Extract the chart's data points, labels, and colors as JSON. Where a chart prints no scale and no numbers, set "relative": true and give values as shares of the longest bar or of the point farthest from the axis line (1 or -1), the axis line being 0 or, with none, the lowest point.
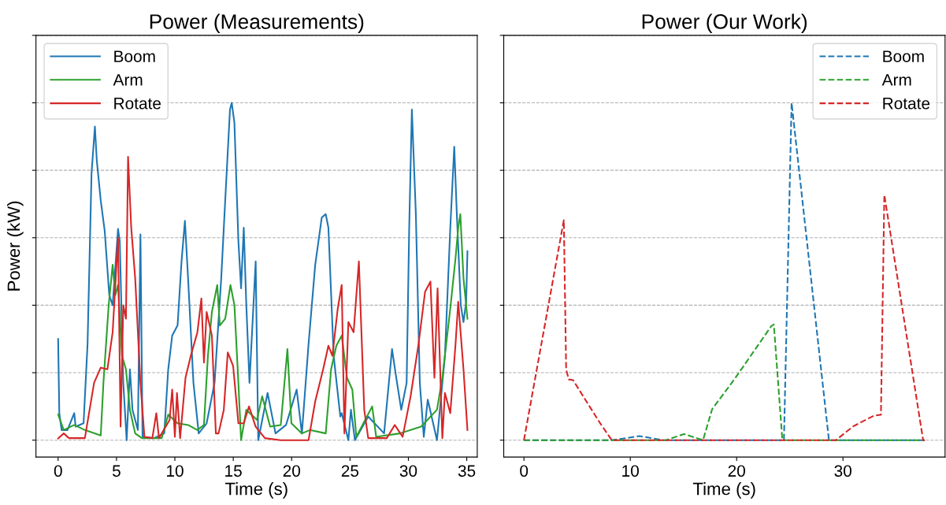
{
  "chart_data": [
    {
      "type": "line",
      "title": "Power (Measurements)",
      "xlabel": "Time (s)",
      "ylabel": "Power (kW)",
      "relative": true,
      "xlim": [
        -1.9,
        35.9
      ],
      "xticks": [
        0,
        5,
        10,
        15,
        20,
        25,
        30,
        35
      ],
      "grid": "y",
      "legend": "top left",
      "tick_labels": "x",
      "line_style": "solid",
      "series": [
        {
          "name": "Boom",
          "color": "#1f77b4",
          "x": [
            0,
            0.1,
            0.3,
            0.8,
            1.38,
            1.5,
            2.18,
            2.52,
            2.86,
            3.15,
            3.31,
            3.65,
            3.99,
            4.38,
            4.67,
            5.13,
            5.28,
            5.58,
            5.87,
            6.15,
            6.37,
            6.83,
            7.05,
            7.23,
            8.19,
            9.09,
            9.43,
            9.77,
            10.23,
            10.57,
            10.86,
            11.13,
            11.59,
            12.04,
            12.72,
            13.4,
            13.97,
            14.31,
            14.72,
            14.87,
            15.1,
            15.44,
            15.67,
            15.9,
            16.12,
            16.39,
            16.92,
            17.14,
            17.94,
            18.62,
            19.52,
            20.43,
            20.88,
            21.45,
            22.02,
            22.58,
            22.92,
            23.15,
            23.6,
            24.17,
            24.29,
            24.86,
            25.08,
            25.42,
            26.56,
            27.92,
            28.6,
            28.94,
            29.39,
            29.85,
            30.07,
            30.3,
            30.64,
            30.98,
            31.32,
            31.66,
            32.45,
            33.13,
            33.59,
            33.93,
            34.15,
            34.49,
            34.72,
            34.95,
            35.06
          ],
          "values": [
            0.3,
            0.08,
            0.03,
            0.03,
            0.08,
            0.04,
            0.05,
            0.285,
            0.79,
            0.93,
            0.83,
            0.71,
            0.62,
            0.43,
            0.4,
            0.626,
            0.59,
            0.17,
            0,
            0.21,
            0.09,
            0.03,
            0.61,
            0.01,
            0.006,
            0.02,
            0.21,
            0.31,
            0.34,
            0.53,
            0.65,
            0.48,
            0.17,
            0.02,
            0.05,
            0.17,
            0.48,
            0.71,
            0.98,
            1.0,
            0.94,
            0.59,
            0.45,
            0.63,
            0.4,
            0.17,
            0.53,
            0,
            0.14,
            0.02,
            0.045,
            0.15,
            0.02,
            0.285,
            0.52,
            0.66,
            0.67,
            0.63,
            0.25,
            0.07,
            0.08,
            0,
            0.09,
            0,
            0.07,
            0.02,
            0.27,
            0.19,
            0.09,
            0.17,
            0.63,
            0.98,
            0.67,
            0.17,
            0.01,
            0.12,
            0,
            0.25,
            0.63,
            0.87,
            0.67,
            0.4,
            0.35,
            0.41,
            0.56
          ]
        },
        {
          "name": "Arm",
          "color": "#2ca02c",
          "x": [
            0,
            0.48,
            1.38,
            2.29,
            3.65,
            3.88,
            4.33,
            4.67,
            4.9,
            5.13,
            5.47,
            5.81,
            6.15,
            6.6,
            7.17,
            8.87,
            9.43,
            10.23,
            11.13,
            11.93,
            12.49,
            12.83,
            13.17,
            13.63,
            13.85,
            14.31,
            14.76,
            15.1,
            15.44,
            15.67,
            16.12,
            17.03,
            17.48,
            18.16,
            19.07,
            19.64,
            19.98,
            20.88,
            21.56,
            22.92,
            23.38,
            23.83,
            24.29,
            24.74,
            25.2,
            25.54,
            26.9,
            27.24,
            29.28,
            31.09,
            32.45,
            32.91,
            33.59,
            34.04,
            34.27,
            34.45,
            34.72,
            35.06
          ],
          "values": [
            0.076,
            0.03,
            0.045,
            0.03,
            0.014,
            0.17,
            0.4,
            0.52,
            0.43,
            0.46,
            0.25,
            0.21,
            0.09,
            0.02,
            0.006,
            0.006,
            0.076,
            0.05,
            0.045,
            0.03,
            0.045,
            0.25,
            0.38,
            0.46,
            0.34,
            0.36,
            0.46,
            0.4,
            0.17,
            0,
            0.09,
            0.06,
            0.13,
            0.04,
            0.045,
            0.27,
            0.05,
            0.02,
            0.03,
            0.02,
            0.21,
            0.28,
            0.31,
            0.185,
            0.15,
            0.01,
            0.1,
            0.01,
            0.02,
            0.04,
            0.09,
            0.185,
            0.39,
            0.54,
            0.63,
            0.67,
            0.48,
            0.36
          ]
        },
        {
          "name": "Rotate",
          "color": "#d62728",
          "x": [
            0,
            0.48,
            0.93,
            2.29,
            3.08,
            3.65,
            4.22,
            4.67,
            5.13,
            5.35,
            5.58,
            5.81,
            5.99,
            6.26,
            6.6,
            7.05,
            7.39,
            8.07,
            8.41,
            8.64,
            9.55,
            9.77,
            10.0,
            10.18,
            10.45,
            10.91,
            11.36,
            11.93,
            12.27,
            12.49,
            12.72,
            13.17,
            13.51,
            13.74,
            14.19,
            14.53,
            14.99,
            15.44,
            15.9,
            16.35,
            16.92,
            17.71,
            19.07,
            21.45,
            22.02,
            22.7,
            23.15,
            23.49,
            23.95,
            24.29,
            24.52,
            24.86,
            25.31,
            25.76,
            26.22,
            26.56,
            28.15,
            28.83,
            29.51,
            30.19,
            30.87,
            31.43,
            31.89,
            32.23,
            32.5,
            32.91,
            33.13,
            33.59,
            34.04,
            34.27,
            34.72,
            35.06
          ],
          "values": [
            0.005,
            0.02,
            0.006,
            0.006,
            0.17,
            0.215,
            0.21,
            0.32,
            0.6,
            0.04,
            0.4,
            0.36,
            0.84,
            0.63,
            0.48,
            0.17,
            0.01,
            0.006,
            0.08,
            0.006,
            0.06,
            0.15,
            0.01,
            0.14,
            0.006,
            0.185,
            0.25,
            0.32,
            0.42,
            0.23,
            0.38,
            0.31,
            0.02,
            0.02,
            0.09,
            0.26,
            0.22,
            0.05,
            0.05,
            0.1,
            0.04,
            0.006,
            0,
            0,
            0.115,
            0.21,
            0.28,
            0.25,
            0.39,
            0.46,
            0.02,
            0.35,
            0.32,
            0.53,
            0.09,
            0.006,
            0.006,
            0.045,
            0.01,
            0.13,
            0.285,
            0.44,
            0.47,
            0.185,
            0.45,
            0.006,
            0.14,
            0.08,
            0.285,
            0.41,
            0.21,
            0.03
          ]
        }
      ]
    },
    {
      "type": "line",
      "title": "Power (Our Work)",
      "xlabel": "Time (s)",
      "relative": true,
      "xlim": [
        -1.9,
        39.6
      ],
      "xticks": [
        0,
        10,
        20,
        30
      ],
      "grid": "y",
      "legend": "top right",
      "tick_labels": "x",
      "line_style": "dashed",
      "series": [
        {
          "name": "Boom",
          "color": "#1f77b4",
          "x": [
            0,
            8.26,
            10.88,
            13.1,
            24.45,
            25.17,
            28.68,
            37.7
          ],
          "values": [
            0,
            0,
            0.012,
            0,
            0,
            1.0,
            0,
            0
          ]
        },
        {
          "name": "Arm",
          "color": "#2ca02c",
          "x": [
            0,
            13.36,
            15.05,
            16.84,
            17.7,
            19.78,
            23.26,
            23.5,
            24.3,
            37.7
          ],
          "values": [
            0,
            0,
            0.018,
            0,
            0.092,
            0.18,
            0.338,
            0.343,
            0,
            0
          ]
        },
        {
          "name": "Rotate",
          "color": "#d62728",
          "x": [
            0,
            3.75,
            3.97,
            4.22,
            4.62,
            5.91,
            7.15,
            8.26,
            29.34,
            30.96,
            32.94,
            33.57,
            33.89,
            37.54,
            37.7
          ],
          "values": [
            0,
            0.652,
            0.209,
            0.18,
            0.178,
            0.113,
            0.051,
            0,
            0,
            0.041,
            0.073,
            0.075,
            0.727,
            0,
            0
          ]
        }
      ]
    }
  ]
}
